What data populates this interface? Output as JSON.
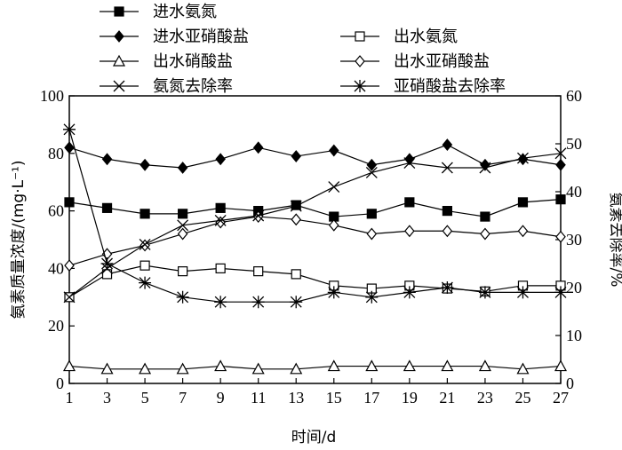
{
  "chart_data": {
    "type": "line",
    "xlabel": "时间/d",
    "ylabel": "氨素质量浓度/(mg·L⁻¹)",
    "y2label": "氨素去除率/%",
    "x": [
      1,
      3,
      5,
      7,
      9,
      11,
      13,
      15,
      17,
      19,
      21,
      23,
      25,
      27
    ],
    "xlim": [
      1,
      27
    ],
    "ylim": [
      0,
      100
    ],
    "y2lim": [
      0,
      60
    ],
    "xticks": [
      "1",
      "3",
      "5",
      "7",
      "9",
      "11",
      "13",
      "15",
      "17",
      "19",
      "21",
      "23",
      "25",
      "27"
    ],
    "yticks": [
      "0",
      "20",
      "40",
      "60",
      "80",
      "100"
    ],
    "y2ticks": [
      "0",
      "10",
      "20",
      "30",
      "40",
      "50",
      "60"
    ],
    "grid": false,
    "legend_placement": "top",
    "series": [
      {
        "name": "进水氨氮",
        "axis": "left",
        "marker": "filled-square",
        "values": [
          63,
          61,
          59,
          59,
          61,
          60,
          62,
          58,
          59,
          63,
          60,
          58,
          63,
          64
        ]
      },
      {
        "name": "进水亚硝酸盐",
        "axis": "left",
        "marker": "filled-diamond",
        "values": [
          82,
          78,
          76,
          75,
          78,
          82,
          79,
          81,
          76,
          78,
          83,
          76,
          78,
          76
        ]
      },
      {
        "name": "出水氨氮",
        "axis": "left",
        "marker": "open-square",
        "values": [
          30,
          38,
          41,
          39,
          40,
          39,
          38,
          34,
          33,
          34,
          33,
          32,
          34,
          34
        ]
      },
      {
        "name": "出水硝酸盐",
        "axis": "left",
        "marker": "open-triangle",
        "values": [
          6,
          5,
          5,
          5,
          6,
          5,
          5,
          6,
          6,
          6,
          6,
          6,
          5,
          6
        ]
      },
      {
        "name": "出水亚硝酸盐",
        "axis": "left",
        "marker": "open-diamond",
        "values": [
          41,
          45,
          48,
          52,
          56,
          58,
          57,
          55,
          52,
          53,
          53,
          52,
          53,
          51
        ]
      },
      {
        "name": "氨氮去除率",
        "axis": "right",
        "marker": "x",
        "values": [
          18,
          24,
          29,
          33,
          34,
          35,
          37,
          41,
          44,
          46,
          45,
          45,
          47,
          48
        ]
      },
      {
        "name": "亚硝酸盐去除率",
        "axis": "right",
        "marker": "asterisk",
        "values": [
          53,
          25,
          21,
          18,
          17,
          17,
          17,
          19,
          18,
          19,
          20,
          19,
          19,
          19
        ]
      }
    ]
  }
}
